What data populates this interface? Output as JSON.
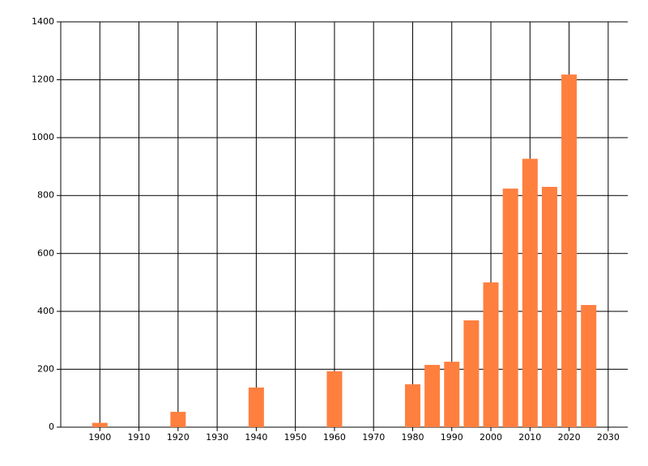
{
  "chart_data": {
    "type": "bar",
    "x": [
      1900,
      1920,
      1940,
      1960,
      1980,
      1985,
      1990,
      1995,
      2000,
      2005,
      2010,
      2015,
      2020,
      2025
    ],
    "values": [
      15,
      53,
      137,
      193,
      148,
      215,
      226,
      369,
      500,
      824,
      927,
      830,
      1218,
      422
    ],
    "color": "#ff7f3f",
    "xlim": [
      1890,
      2035
    ],
    "ylim": [
      0,
      1400
    ],
    "xticks": [
      1900,
      1910,
      1920,
      1930,
      1940,
      1950,
      1960,
      1970,
      1980,
      1990,
      2000,
      2010,
      2020,
      2030
    ],
    "yticks": [
      0,
      200,
      400,
      600,
      800,
      1000,
      1200,
      1400
    ],
    "grid": true
  }
}
